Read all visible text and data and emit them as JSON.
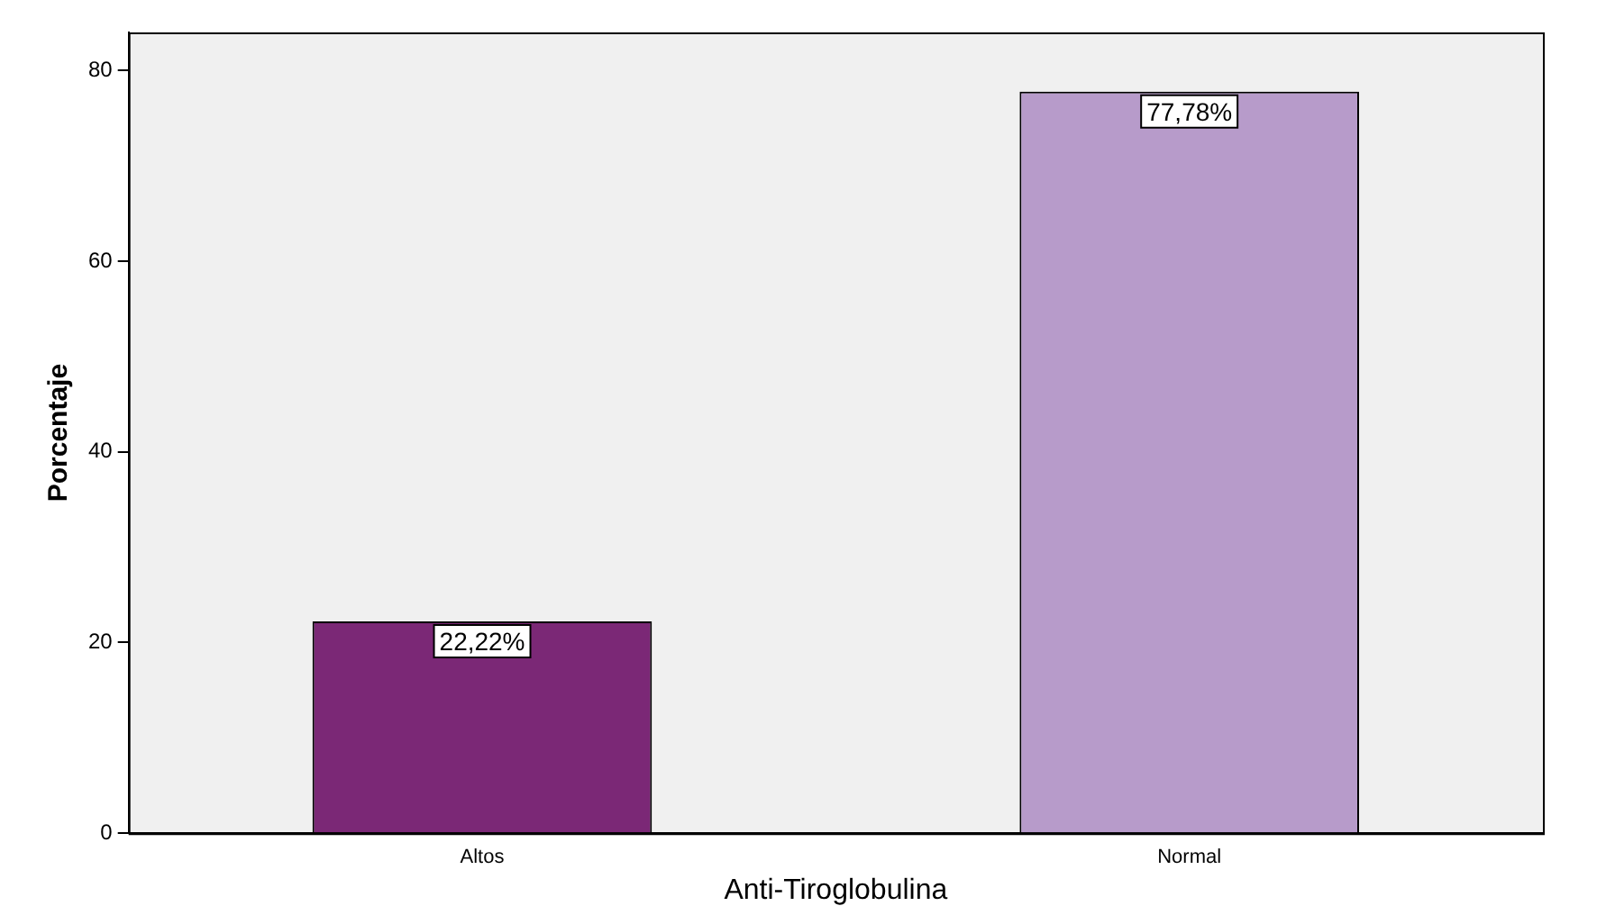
{
  "chart_data": {
    "type": "bar",
    "xlabel": "Anti-Tiroglobulina",
    "ylabel": "Porcentaje",
    "categories": [
      "Altos",
      "Normal"
    ],
    "values": [
      22.22,
      77.78
    ],
    "colors": [
      "#7b2876",
      "#b79bca"
    ],
    "value_labels": [
      "22,22%",
      "77,78%"
    ],
    "ylim": [
      0,
      84
    ],
    "yticks": [
      0,
      20,
      40,
      60,
      80
    ],
    "grid": false,
    "legend": false
  }
}
